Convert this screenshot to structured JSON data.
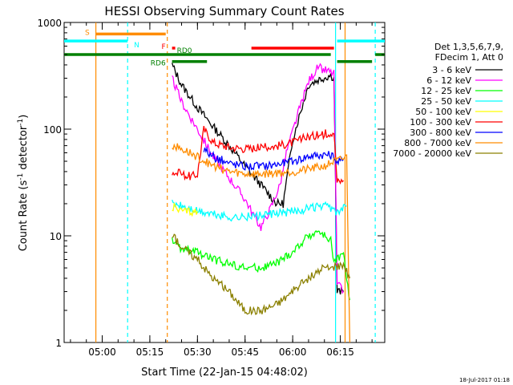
{
  "chart_data": {
    "type": "line",
    "title": "HESSI Observing Summary Count Rates",
    "xlabel": "Start Time (22-Jan-15 04:48:02)",
    "ylabel_parts": [
      "Count Rate (s",
      "-1",
      " detector",
      "-1",
      ")"
    ],
    "yscale": "log",
    "ylim": [
      1,
      1000
    ],
    "yticks": [
      1,
      10,
      100,
      1000
    ],
    "ytick_labels": [
      "1",
      "10",
      "100",
      "1000"
    ],
    "xlim_minutes": [
      288,
      389
    ],
    "xticks": [
      300,
      315,
      330,
      345,
      360,
      375
    ],
    "xtick_labels": [
      "05:00",
      "05:15",
      "05:30",
      "05:45",
      "06:00",
      "06:15"
    ],
    "legend": {
      "position": "right",
      "header": [
        "Det 1,3,5,6,7,9,",
        "FDecim 1, Att 0"
      ]
    },
    "series": [
      {
        "name": "3 - 6 keV",
        "color": "#000000",
        "points": [
          [
            322,
            400
          ],
          [
            325,
            260
          ],
          [
            330,
            160
          ],
          [
            335,
            105
          ],
          [
            340,
            70
          ],
          [
            345,
            45
          ],
          [
            350,
            30
          ],
          [
            355,
            20
          ],
          [
            357,
            20
          ],
          [
            360,
            80
          ],
          [
            362,
            130
          ],
          [
            365,
            260
          ],
          [
            368,
            290
          ],
          [
            372,
            320
          ],
          [
            373,
            300
          ],
          [
            374,
            3
          ],
          [
            376,
            3
          ]
        ]
      },
      {
        "name": "6 - 12 keV",
        "color": "#ff00ff",
        "points": [
          [
            322,
            300
          ],
          [
            325,
            180
          ],
          [
            330,
            100
          ],
          [
            335,
            55
          ],
          [
            340,
            35
          ],
          [
            345,
            22
          ],
          [
            348,
            15
          ],
          [
            350,
            12
          ],
          [
            353,
            18
          ],
          [
            356,
            30
          ],
          [
            358,
            60
          ],
          [
            362,
            150
          ],
          [
            365,
            280
          ],
          [
            368,
            380
          ],
          [
            370,
            360
          ],
          [
            373,
            330
          ],
          [
            374,
            3.5
          ],
          [
            376,
            3
          ]
        ]
      },
      {
        "name": "12 - 25 keV",
        "color": "#00ff00",
        "points": [
          [
            322,
            9
          ],
          [
            325,
            7.5
          ],
          [
            330,
            7
          ],
          [
            335,
            6
          ],
          [
            340,
            5.5
          ],
          [
            345,
            5
          ],
          [
            350,
            5
          ],
          [
            355,
            5.5
          ],
          [
            360,
            7
          ],
          [
            365,
            10
          ],
          [
            368,
            11
          ],
          [
            372,
            9
          ],
          [
            373,
            6
          ],
          [
            376,
            6.5
          ],
          [
            378,
            2.5
          ]
        ]
      },
      {
        "name": "25 - 50 keV",
        "color": "#00ffff",
        "points": [
          [
            322,
            20
          ],
          [
            325,
            19
          ],
          [
            330,
            17
          ],
          [
            335,
            16
          ],
          [
            340,
            15
          ],
          [
            345,
            15
          ],
          [
            350,
            15.5
          ],
          [
            355,
            16
          ],
          [
            360,
            17
          ],
          [
            365,
            18
          ],
          [
            370,
            19
          ],
          [
            373,
            18
          ],
          [
            374,
            16
          ],
          [
            376,
            18
          ],
          [
            377,
            19
          ]
        ]
      },
      {
        "name": "50 - 100 keV",
        "color": "#ffff00",
        "points": [
          [
            322,
            19
          ],
          [
            325,
            17
          ],
          [
            328,
            17
          ],
          [
            330,
            17
          ]
        ]
      },
      {
        "name": "100 - 300 keV",
        "color": "#ff0000",
        "points": [
          [
            322,
            40
          ],
          [
            325,
            38
          ],
          [
            328,
            36
          ],
          [
            330,
            38
          ],
          [
            332,
            100
          ],
          [
            335,
            75
          ],
          [
            340,
            68
          ],
          [
            345,
            66
          ],
          [
            350,
            67
          ],
          [
            355,
            70
          ],
          [
            360,
            75
          ],
          [
            365,
            85
          ],
          [
            370,
            90
          ],
          [
            373,
            95
          ],
          [
            374,
            32
          ],
          [
            376,
            33
          ]
        ]
      },
      {
        "name": "300 - 800 keV",
        "color": "#0000ff",
        "points": [
          [
            332,
            65
          ],
          [
            335,
            55
          ],
          [
            340,
            48
          ],
          [
            345,
            45
          ],
          [
            350,
            45
          ],
          [
            355,
            47
          ],
          [
            360,
            50
          ],
          [
            365,
            56
          ],
          [
            370,
            58
          ],
          [
            373,
            56
          ],
          [
            374,
            48
          ],
          [
            376,
            52
          ]
        ]
      },
      {
        "name": "800 - 7000 keV",
        "color": "#ff8c00",
        "points": [
          [
            322,
            70
          ],
          [
            325,
            65
          ],
          [
            330,
            55
          ],
          [
            335,
            45
          ],
          [
            340,
            40
          ],
          [
            345,
            38
          ],
          [
            350,
            38
          ],
          [
            355,
            39
          ],
          [
            360,
            40
          ],
          [
            365,
            42
          ],
          [
            370,
            45
          ],
          [
            373,
            50
          ],
          [
            374,
            50
          ],
          [
            377,
            55
          ],
          [
            378,
            1
          ]
        ]
      },
      {
        "name": "7000 - 20000 keV",
        "color": "#8b8000",
        "points": [
          [
            322,
            10
          ],
          [
            325,
            8
          ],
          [
            330,
            6
          ],
          [
            335,
            4
          ],
          [
            340,
            3
          ],
          [
            345,
            2
          ],
          [
            350,
            2
          ],
          [
            355,
            2.3
          ],
          [
            360,
            3
          ],
          [
            365,
            4
          ],
          [
            370,
            5
          ],
          [
            373,
            5
          ],
          [
            376,
            5.5
          ],
          [
            378,
            4
          ]
        ]
      }
    ],
    "annotations": {
      "flags": [
        {
          "label": "S",
          "color": "#ff8c00",
          "segments": [
            [
              298,
              320
            ]
          ],
          "level": 780
        },
        {
          "label": "N",
          "color": "#00ffff",
          "segments": [
            [
              288,
              308
            ],
            [
              374,
              389
            ]
          ],
          "level": 670
        },
        {
          "label": "F",
          "color": "#ff0000",
          "segments": [
            [
              322,
              323
            ],
            [
              347,
              373
            ]
          ],
          "level": 575
        },
        {
          "label": "RD0",
          "color": "#008000",
          "segments": [
            [
              288,
              372
            ],
            [
              386,
              389
            ]
          ],
          "level": 500
        },
        {
          "label": "RD6",
          "color": "#008000",
          "segments": [
            [
              322,
              333
            ],
            [
              374,
              385
            ]
          ],
          "level": 430
        }
      ],
      "vertical_lines": [
        {
          "x": 298,
          "color": "#ff8c00",
          "style": "solid"
        },
        {
          "x": 308,
          "color": "#00ffff",
          "style": "dashed"
        },
        {
          "x": 320.5,
          "color": "#ff8c00",
          "style": "dashed"
        },
        {
          "x": 373.5,
          "color": "#00ffff",
          "style": "solid"
        },
        {
          "x": 376.5,
          "color": "#ff8c00",
          "style": "solid"
        },
        {
          "x": 386,
          "color": "#00ffff",
          "style": "dashed"
        }
      ]
    },
    "footer_date": "18-Jul-2017 01:18"
  }
}
